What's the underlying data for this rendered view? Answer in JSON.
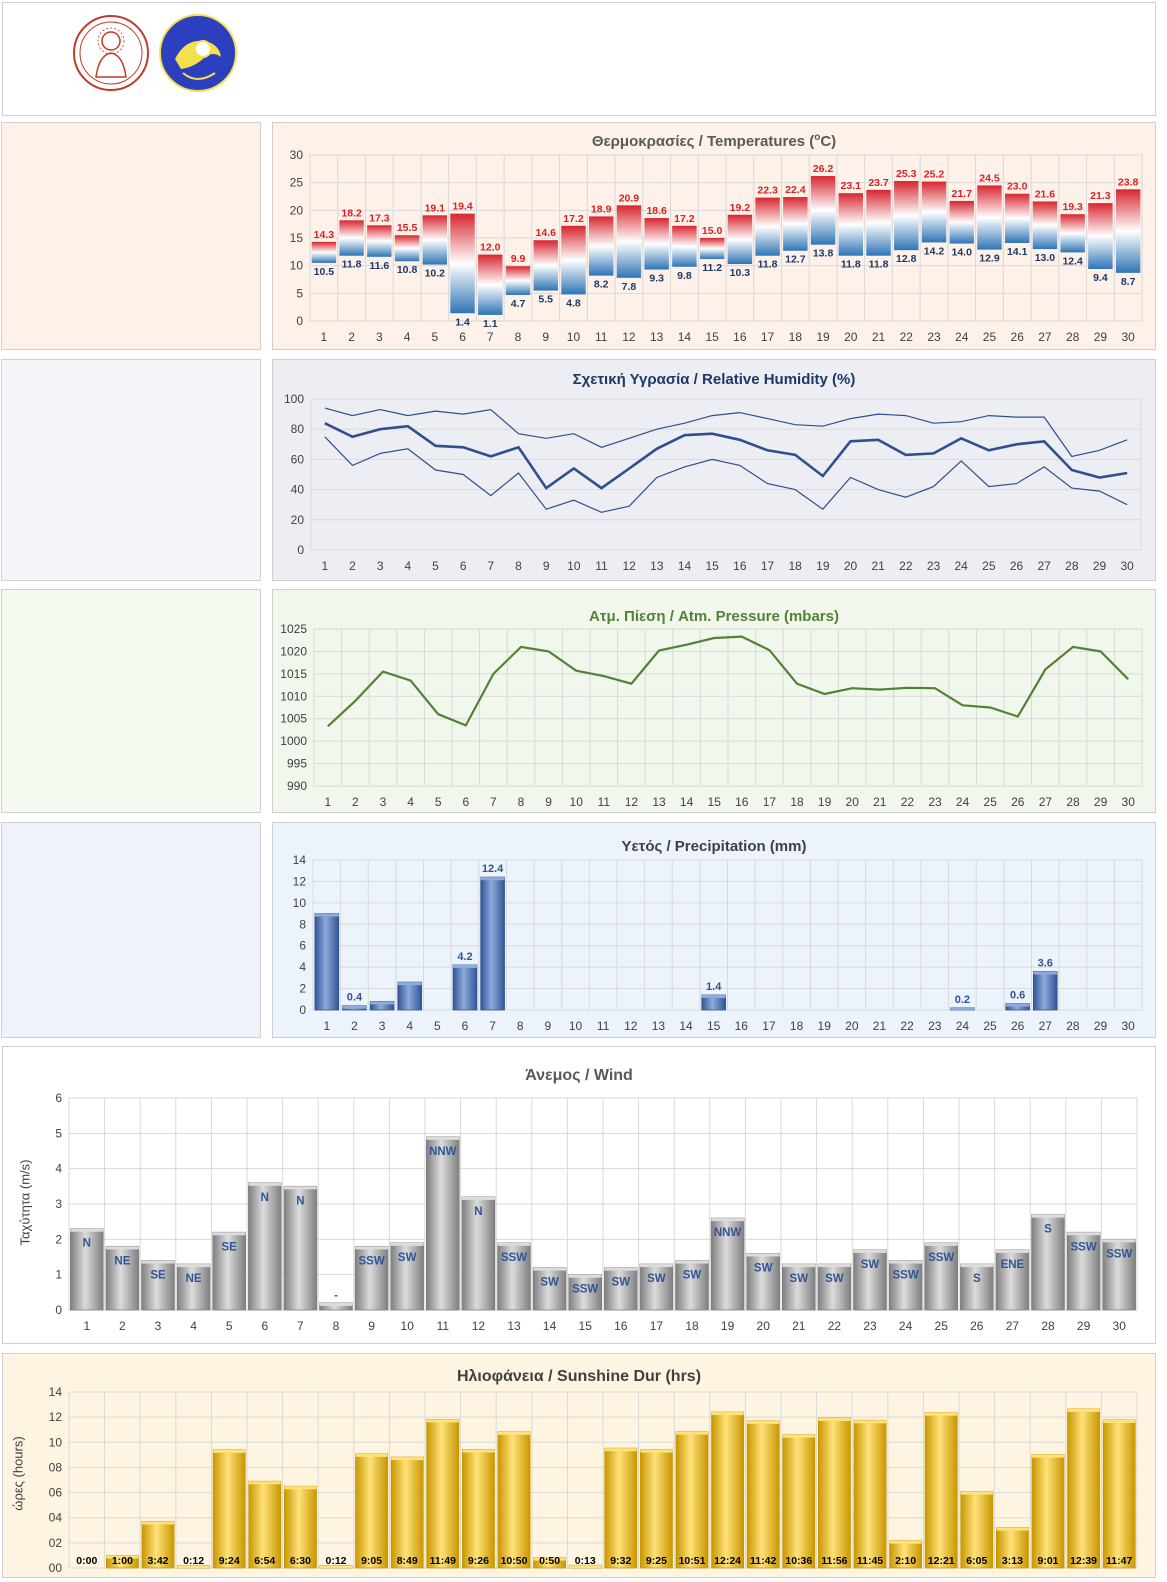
{
  "charts": {
    "temp": {
      "title": "Θερμοκρασίες / Temperatures (",
      "title_sup": "o",
      "title_tail": "C)"
    },
    "hum": {
      "title": "Σχετική Υγρασία / Relative Humidity (%)"
    },
    "pres": {
      "title": "Ατμ. Πίεση / Atm. Pressure (mbars)"
    },
    "precip": {
      "title": "Υετός / Precipitation (mm)"
    },
    "wind": {
      "title": "Άνεμος / Wind",
      "ylabel": "Ταχύτητα  (m/s)"
    },
    "sun": {
      "title": "Ηλιοφάνεια / Sunshine Dur (hrs)",
      "ylabel": "ώρες (hours)"
    }
  },
  "chart_data": [
    {
      "id": "temp",
      "type": "bar",
      "title": "Θερμοκρασίες / Temperatures (oC)",
      "x": [
        1,
        2,
        3,
        4,
        5,
        6,
        7,
        8,
        9,
        10,
        11,
        12,
        13,
        14,
        15,
        16,
        17,
        18,
        19,
        20,
        21,
        22,
        23,
        24,
        25,
        26,
        27,
        28,
        29,
        30
      ],
      "series": [
        {
          "name": "max",
          "values": [
            14.3,
            18.2,
            17.3,
            15.5,
            19.1,
            19.4,
            12.0,
            9.9,
            14.6,
            17.2,
            18.9,
            20.9,
            18.6,
            17.2,
            15.0,
            19.2,
            22.3,
            22.4,
            26.2,
            23.1,
            23.7,
            25.3,
            25.2,
            21.7,
            24.5,
            23.0,
            21.6,
            19.3,
            21.3,
            23.8
          ]
        },
        {
          "name": "min",
          "values": [
            10.5,
            11.8,
            11.6,
            10.8,
            10.2,
            1.4,
            1.1,
            4.7,
            5.5,
            4.8,
            8.2,
            7.8,
            9.3,
            9.8,
            11.2,
            10.3,
            11.8,
            12.7,
            13.8,
            11.8,
            11.8,
            12.8,
            14.2,
            14.0,
            12.9,
            14.1,
            13.0,
            12.4,
            9.4,
            8.7
          ]
        }
      ],
      "max_labels": [
        "14.3",
        "18.2",
        "17.3",
        "15.5",
        "19.1",
        "19.4",
        "12.0",
        "9.9",
        "14.6",
        "17.2",
        "18.9",
        "20.9",
        "18.6",
        "17.2",
        "15.0",
        "19.2",
        "22.3",
        "22.4",
        "26.2",
        "23.1",
        "23.7",
        "25.3",
        "25.2",
        "21.7",
        "24.5",
        "23.0",
        "21.6",
        "19.3",
        "21.3",
        "23.8"
      ],
      "min_labels": [
        "10.5",
        "11.8",
        "11.6",
        "10.8",
        "10.2",
        "1.4",
        "1.1",
        "4.7",
        "5.5",
        "4.8",
        "8.2",
        "7.8",
        "9.3",
        "9.8",
        "11.2",
        "10.3",
        "11.8",
        "12.7",
        "13.8",
        "11.8",
        "11.8",
        "12.8",
        "14.2",
        "14.0",
        "12.9",
        "14.1",
        "13.0",
        "12.4",
        "9.4",
        "8.7"
      ],
      "ylim": [
        0,
        30
      ],
      "yticks": [
        0,
        5,
        10,
        15,
        20,
        25,
        30
      ],
      "colors": {
        "max_label": "#e02020",
        "min_label": "#1f3864",
        "top": "#d7262e",
        "bottom": "#2e75b6"
      },
      "grid": true
    },
    {
      "id": "hum",
      "type": "line",
      "title": "Σχετική Υγρασία / Relative Humidity (%)",
      "x": [
        1,
        2,
        3,
        4,
        5,
        6,
        7,
        8,
        9,
        10,
        11,
        12,
        13,
        14,
        15,
        16,
        17,
        18,
        19,
        20,
        21,
        22,
        23,
        24,
        25,
        26,
        27,
        28,
        29,
        30
      ],
      "series": [
        {
          "name": "max",
          "values": [
            94,
            89,
            93,
            89,
            92,
            90,
            93,
            77,
            74,
            77,
            68,
            74,
            80,
            84,
            89,
            91,
            87,
            83,
            82,
            87,
            90,
            89,
            84,
            85,
            89,
            88,
            88,
            62,
            66,
            73
          ]
        },
        {
          "name": "mean",
          "values": [
            84,
            75,
            80,
            82,
            69,
            68,
            62,
            68,
            41,
            54,
            41,
            54,
            67,
            76,
            77,
            73,
            66,
            63,
            49,
            72,
            73,
            63,
            64,
            74,
            66,
            70,
            72,
            53,
            48,
            51
          ]
        },
        {
          "name": "min",
          "values": [
            75,
            56,
            64,
            67,
            53,
            50,
            36,
            51,
            27,
            33,
            25,
            29,
            48,
            55,
            60,
            56,
            44,
            40,
            27,
            48,
            40,
            35,
            42,
            59,
            42,
            44,
            55,
            41,
            39,
            30
          ]
        }
      ],
      "ylim": [
        0,
        100
      ],
      "yticks": [
        0,
        20,
        40,
        60,
        80,
        100
      ],
      "colors": {
        "line": "#2f4f8f"
      },
      "grid": true
    },
    {
      "id": "pres",
      "type": "line",
      "title": "Ατμ. Πίεση / Atm. Pressure (mbars)",
      "x": [
        1,
        2,
        3,
        4,
        5,
        6,
        7,
        8,
        9,
        10,
        11,
        12,
        13,
        14,
        15,
        16,
        17,
        18,
        19,
        20,
        21,
        22,
        23,
        24,
        25,
        26,
        27,
        28,
        29,
        30
      ],
      "series": [
        {
          "name": "pressure",
          "values": [
            1003.3,
            1009.0,
            1015.5,
            1013.5,
            1006.0,
            1003.5,
            1015.0,
            1021.0,
            1020.0,
            1015.7,
            1014.5,
            1012.8,
            1020.2,
            1021.5,
            1023.0,
            1023.3,
            1020.3,
            1012.8,
            1010.5,
            1011.8,
            1011.5,
            1011.9,
            1011.8,
            1008.0,
            1007.5,
            1005.5,
            1016.0,
            1021.0,
            1020.0,
            1013.8
          ]
        }
      ],
      "ylim": [
        990,
        1025
      ],
      "yticks": [
        990,
        995,
        1000,
        1005,
        1010,
        1015,
        1020,
        1025
      ],
      "colors": {
        "line": "#548235"
      },
      "grid": true
    },
    {
      "id": "precip",
      "type": "bar",
      "title": "Υετός / Precipitation (mm)",
      "x": [
        1,
        2,
        3,
        4,
        5,
        6,
        7,
        8,
        9,
        10,
        11,
        12,
        13,
        14,
        15,
        16,
        17,
        18,
        19,
        20,
        21,
        22,
        23,
        24,
        25,
        26,
        27,
        28,
        29,
        30
      ],
      "values": [
        9.0,
        0.4,
        0.8,
        2.6,
        0,
        4.2,
        12.4,
        0,
        0,
        0,
        0,
        0,
        0,
        0,
        1.4,
        0,
        0,
        0,
        0,
        0,
        0,
        0,
        0,
        0.2,
        0,
        0.6,
        3.6,
        0,
        0,
        0
      ],
      "labels": [
        "",
        "0.4",
        "",
        "",
        "",
        "4.2",
        "12.4",
        "",
        "",
        "",
        "",
        "",
        "",
        "",
        "1.4",
        "",
        "",
        "",
        "",
        "",
        "",
        "",
        "",
        "0.2",
        "",
        "0.6",
        "3.6",
        "",
        "",
        ""
      ],
      "ylim": [
        0,
        14
      ],
      "yticks": [
        0,
        2,
        4,
        6,
        8,
        10,
        12,
        14
      ],
      "colors": {
        "bar": "#4472c4",
        "label": "#2f5597"
      },
      "grid": true
    },
    {
      "id": "wind",
      "type": "bar",
      "title": "Άνεμος / Wind",
      "ylabel": "Ταχύτητα  (m/s)",
      "x": [
        1,
        2,
        3,
        4,
        5,
        6,
        7,
        8,
        9,
        10,
        11,
        12,
        13,
        14,
        15,
        16,
        17,
        18,
        19,
        20,
        21,
        22,
        23,
        24,
        25,
        26,
        27,
        28,
        29,
        30
      ],
      "values": [
        2.3,
        1.8,
        1.4,
        1.3,
        2.2,
        3.6,
        3.5,
        0.2,
        1.8,
        1.9,
        4.9,
        3.2,
        1.9,
        1.2,
        1.0,
        1.2,
        1.3,
        1.4,
        2.6,
        1.6,
        1.3,
        1.3,
        1.7,
        1.4,
        1.9,
        1.3,
        1.7,
        2.7,
        2.2,
        2.0
      ],
      "labels": [
        "N",
        "NE",
        "SE",
        "NE",
        "SE",
        "N",
        "N",
        "-",
        "SSW",
        "SW",
        "NNW",
        "N",
        "SSW",
        "SW",
        "SSW",
        "SW",
        "SW",
        "SW",
        "NNW",
        "SW",
        "SW",
        "SW",
        "SW",
        "SSW",
        "SSW",
        "S",
        "ENE",
        "S",
        "SSW",
        "SSW"
      ],
      "ylim": [
        0,
        6
      ],
      "yticks": [
        0,
        1,
        2,
        3,
        4,
        5,
        6
      ],
      "colors": {
        "bar": "#a6a6a6",
        "label": "#2f5597"
      },
      "grid": true
    },
    {
      "id": "sun",
      "type": "bar",
      "title": "Ηλιοφάνεια / Sunshine Dur (hrs)",
      "ylabel": "ώρες (hours)",
      "x": [
        1,
        2,
        3,
        4,
        5,
        6,
        7,
        8,
        9,
        10,
        11,
        12,
        13,
        14,
        15,
        16,
        17,
        18,
        19,
        20,
        21,
        22,
        23,
        24,
        25,
        26,
        27,
        28,
        29,
        30
      ],
      "values": [
        0,
        1.0,
        3.7,
        0.2,
        9.4,
        6.9,
        6.5,
        0.2,
        9.08,
        8.82,
        11.82,
        9.43,
        10.83,
        0.83,
        0.22,
        9.53,
        9.42,
        10.85,
        12.4,
        11.7,
        10.6,
        11.93,
        11.75,
        2.17,
        12.35,
        6.08,
        3.22,
        9.02,
        12.65,
        11.78
      ],
      "labels": [
        "0:00",
        "1:00",
        "3:42",
        "0:12",
        "9:24",
        "6:54",
        "6:30",
        "0:12",
        "9:05",
        "8:49",
        "11:49",
        "9:26",
        "10:50",
        "0:50",
        "0:13",
        "9:32",
        "9:25",
        "10:51",
        "12:24",
        "11:42",
        "10:36",
        "11:56",
        "11:45",
        "2:10",
        "12:21",
        "6:05",
        "3:13",
        "9:01",
        "12:39",
        "11:47"
      ],
      "ylim": [
        0,
        14
      ],
      "yticks": [
        "00",
        "02",
        "04",
        "06",
        "08",
        "10",
        "12",
        "14"
      ],
      "colors": {
        "bar": "#ffc000",
        "label": "#000000"
      },
      "grid": true
    }
  ]
}
